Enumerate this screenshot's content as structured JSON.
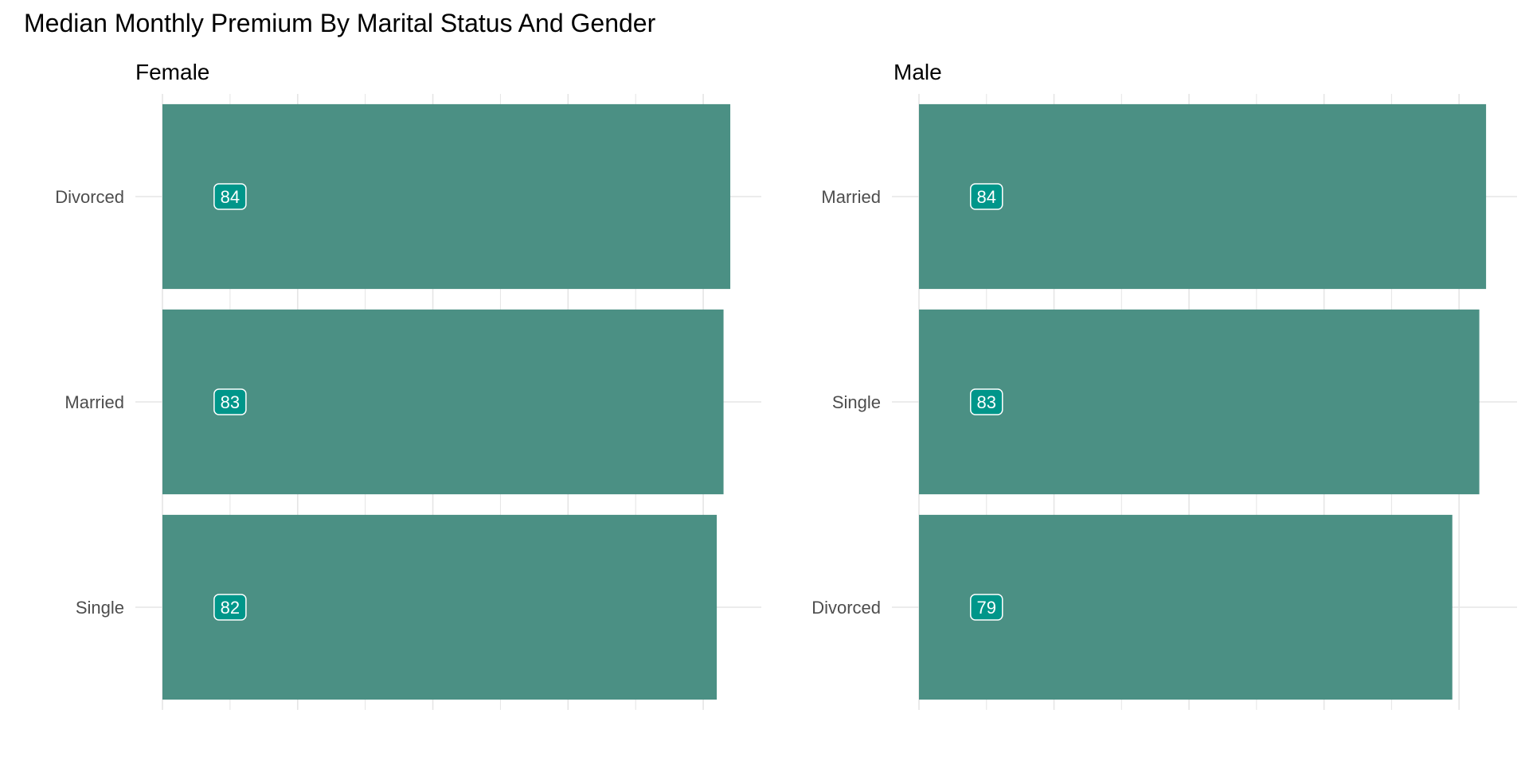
{
  "chart_data": {
    "type": "bar",
    "orientation": "horizontal",
    "title": "Median Monthly Premium By Marital Status And Gender",
    "xlabel": "",
    "ylabel": "",
    "xlim": [
      0,
      88
    ],
    "grid": true,
    "colors": {
      "bar": "#4b9084",
      "label_fill": "#00968a",
      "label_border": "#ffffff",
      "label_text": "#ffffff",
      "grid": "#e5e5e5"
    },
    "panels": [
      {
        "name": "Female",
        "categories": [
          "Divorced",
          "Married",
          "Single"
        ],
        "values": [
          84,
          83,
          82
        ],
        "labels": [
          "84",
          "83",
          "82"
        ]
      },
      {
        "name": "Male",
        "categories": [
          "Married",
          "Single",
          "Divorced"
        ],
        "values": [
          84,
          83,
          79
        ],
        "labels": [
          "84",
          "83",
          "79"
        ]
      }
    ]
  }
}
